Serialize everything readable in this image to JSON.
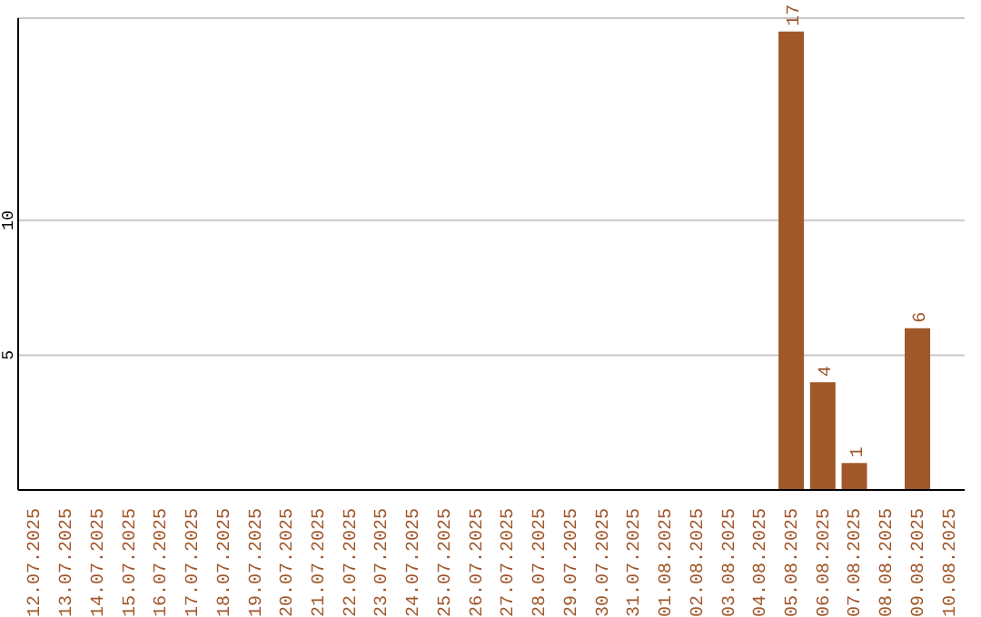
{
  "chart_data": {
    "type": "bar",
    "categories": [
      "12.07.2025",
      "13.07.2025",
      "14.07.2025",
      "15.07.2025",
      "16.07.2025",
      "17.07.2025",
      "18.07.2025",
      "19.07.2025",
      "20.07.2025",
      "21.07.2025",
      "22.07.2025",
      "23.07.2025",
      "24.07.2025",
      "25.07.2025",
      "26.07.2025",
      "27.07.2025",
      "28.07.2025",
      "29.07.2025",
      "30.07.2025",
      "31.07.2025",
      "01.08.2025",
      "02.08.2025",
      "03.08.2025",
      "04.08.2025",
      "05.08.2025",
      "06.08.2025",
      "07.08.2025",
      "08.08.2025",
      "09.08.2025",
      "10.08.2025"
    ],
    "values": [
      null,
      null,
      null,
      null,
      null,
      null,
      null,
      null,
      null,
      null,
      null,
      null,
      null,
      null,
      null,
      null,
      null,
      null,
      null,
      null,
      null,
      null,
      null,
      null,
      17,
      4,
      1,
      null,
      6,
      null
    ],
    "color": "#a0572a",
    "ylim": [
      0,
      17.5
    ],
    "yticks": [
      5,
      10
    ],
    "grid": "y",
    "data_labels": true
  }
}
